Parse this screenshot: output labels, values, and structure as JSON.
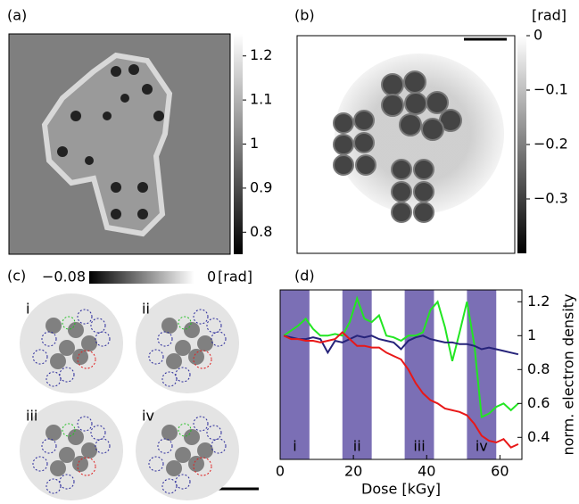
{
  "chart_data": [
    {
      "type": "image",
      "label": "(a)",
      "colorbar": {
        "ylim": [
          0.75,
          1.25
        ],
        "yticks": [
          0.8,
          0.9,
          1,
          1.1,
          1.2
        ]
      }
    },
    {
      "type": "image",
      "label": "(b)",
      "colorbar": {
        "unit": "[rad]",
        "ylim": [
          -0.4,
          0
        ],
        "yticks": [
          0,
          {
            "value": -0.1,
            "label": "−0.1"
          },
          {
            "value": -0.2,
            "label": "−0.2"
          },
          {
            "value": -0.3,
            "label": "−0.3"
          }
        ]
      }
    },
    {
      "type": "image",
      "label": "(c)",
      "panels": [
        "i",
        "ii",
        "iii",
        "iv"
      ],
      "colorbar": {
        "unit": "[rad]",
        "xlim": [
          -0.08,
          0
        ],
        "xticks": [
          {
            "value": -0.08,
            "label": "−0.08"
          },
          0
        ]
      }
    },
    {
      "type": "line",
      "label": "(d)",
      "xlabel": "Dose [kGy]",
      "ylabel": "norm. electron density",
      "xlim": [
        0,
        66
      ],
      "xticks": [
        0,
        20,
        40,
        60
      ],
      "ylim": [
        0.27,
        1.27
      ],
      "yticks": [
        0.4,
        0.6,
        0.8,
        1,
        1.2
      ],
      "regions": [
        {
          "start": 0,
          "end": 8,
          "label": "i"
        },
        {
          "start": 17,
          "end": 25,
          "label": "ii"
        },
        {
          "start": 34,
          "end": 42,
          "label": "iii"
        },
        {
          "start": 51,
          "end": 59,
          "label": "iv"
        }
      ],
      "region_color": "#7b6fb5",
      "x": [
        1,
        3,
        5,
        7,
        9,
        11,
        13,
        15,
        17,
        19,
        21,
        23,
        25,
        27,
        29,
        31,
        33,
        35,
        37,
        39,
        41,
        43,
        45,
        47,
        49,
        51,
        53,
        55,
        57,
        59,
        61,
        63,
        65
      ],
      "series": [
        {
          "color": "#22e622",
          "values": [
            1.0,
            1.03,
            1.06,
            1.1,
            1.04,
            1.0,
            1.0,
            1.01,
            1.0,
            1.08,
            1.22,
            1.1,
            1.08,
            1.12,
            1.0,
            0.99,
            0.97,
            1.0,
            1.0,
            1.02,
            1.15,
            1.2,
            1.05,
            0.85,
            1.02,
            1.2,
            0.95,
            0.52,
            0.54,
            0.58,
            0.6,
            0.56,
            0.6
          ]
        },
        {
          "color": "#26237a",
          "values": [
            1.0,
            0.99,
            0.98,
            0.98,
            0.99,
            0.98,
            0.9,
            0.97,
            0.96,
            0.98,
            1.0,
            0.99,
            1.0,
            0.98,
            0.97,
            0.96,
            0.92,
            0.97,
            0.99,
            1.0,
            0.98,
            0.97,
            0.96,
            0.96,
            0.95,
            0.95,
            0.94,
            0.92,
            0.93,
            0.92,
            0.91,
            0.9,
            0.89
          ]
        },
        {
          "color": "#e81818",
          "values": [
            1.0,
            0.98,
            0.98,
            0.97,
            0.97,
            0.96,
            0.97,
            0.98,
            1.02,
            0.98,
            0.94,
            0.94,
            0.93,
            0.93,
            0.9,
            0.88,
            0.86,
            0.8,
            0.72,
            0.66,
            0.62,
            0.6,
            0.57,
            0.56,
            0.55,
            0.53,
            0.48,
            0.41,
            0.38,
            0.37,
            0.39,
            0.34,
            0.36
          ]
        }
      ]
    }
  ]
}
